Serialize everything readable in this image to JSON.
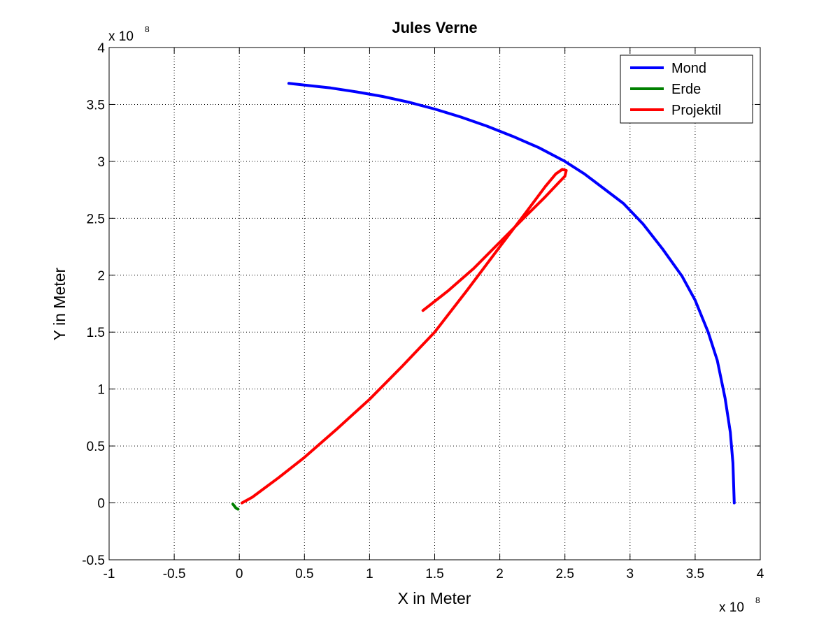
{
  "chart_data": {
    "type": "line",
    "title": "Jules Verne",
    "xlabel": "X in Meter",
    "ylabel": "Y in Meter",
    "x_multiplier": {
      "base": "x 10",
      "exponent": "8"
    },
    "y_multiplier": {
      "base": "x 10",
      "exponent": "8"
    },
    "xlim": [
      -1,
      4
    ],
    "ylim": [
      -0.5,
      4
    ],
    "xticks": [
      -1,
      -0.5,
      0,
      0.5,
      1,
      1.5,
      2,
      2.5,
      3,
      3.5,
      4
    ],
    "yticks": [
      -0.5,
      0,
      0.5,
      1,
      1.5,
      2,
      2.5,
      3,
      3.5,
      4
    ],
    "xtick_labels": [
      "-1",
      "-0.5",
      "0",
      "0.5",
      "1",
      "1.5",
      "2",
      "2.5",
      "3",
      "3.5",
      "4"
    ],
    "ytick_labels": [
      "-0.5",
      "0",
      "0.5",
      "1",
      "1.5",
      "2",
      "2.5",
      "3",
      "3.5",
      "4"
    ],
    "grid": true,
    "legend_position": "top-right",
    "series": [
      {
        "name": "Mond",
        "color": "#0000ff",
        "points": [
          [
            3.8,
            0.0
          ],
          [
            3.79,
            0.35
          ],
          [
            3.77,
            0.62
          ],
          [
            3.73,
            0.92
          ],
          [
            3.67,
            1.25
          ],
          [
            3.6,
            1.5
          ],
          [
            3.5,
            1.78
          ],
          [
            3.4,
            1.99
          ],
          [
            3.25,
            2.23
          ],
          [
            3.1,
            2.45
          ],
          [
            2.95,
            2.63
          ],
          [
            2.8,
            2.76
          ],
          [
            2.65,
            2.89
          ],
          [
            2.5,
            3.0
          ],
          [
            2.3,
            3.12
          ],
          [
            2.1,
            3.22
          ],
          [
            1.9,
            3.31
          ],
          [
            1.7,
            3.39
          ],
          [
            1.5,
            3.46
          ],
          [
            1.3,
            3.52
          ],
          [
            1.1,
            3.57
          ],
          [
            0.9,
            3.61
          ],
          [
            0.7,
            3.645
          ],
          [
            0.5,
            3.67
          ],
          [
            0.38,
            3.685
          ]
        ]
      },
      {
        "name": "Erde",
        "color": "#008000",
        "points": [
          [
            -0.05,
            -0.01
          ],
          [
            -0.04,
            -0.025
          ],
          [
            -0.03,
            -0.04
          ],
          [
            -0.02,
            -0.05
          ],
          [
            -0.01,
            -0.055
          ]
        ]
      },
      {
        "name": "Projektil",
        "color": "#ff0000",
        "points": [
          [
            0.02,
            0.0
          ],
          [
            0.1,
            0.05
          ],
          [
            0.3,
            0.22
          ],
          [
            0.5,
            0.4
          ],
          [
            0.75,
            0.65
          ],
          [
            1.0,
            0.91
          ],
          [
            1.25,
            1.2
          ],
          [
            1.5,
            1.5
          ],
          [
            1.75,
            1.87
          ],
          [
            2.0,
            2.25
          ],
          [
            2.2,
            2.55
          ],
          [
            2.35,
            2.78
          ],
          [
            2.43,
            2.89
          ],
          [
            2.48,
            2.93
          ],
          [
            2.51,
            2.92
          ],
          [
            2.5,
            2.87
          ],
          [
            2.45,
            2.81
          ],
          [
            2.35,
            2.69
          ],
          [
            2.2,
            2.52
          ],
          [
            2.0,
            2.29
          ],
          [
            1.8,
            2.06
          ],
          [
            1.6,
            1.86
          ],
          [
            1.41,
            1.69
          ]
        ]
      }
    ]
  }
}
